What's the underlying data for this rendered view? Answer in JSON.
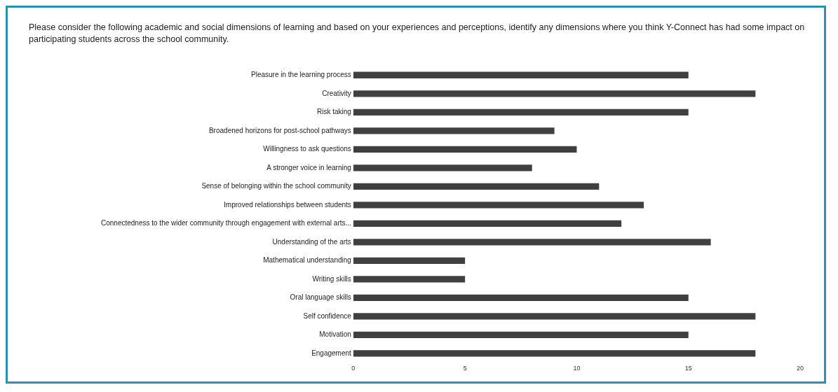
{
  "chart_data": {
    "type": "bar",
    "orientation": "horizontal",
    "title": "Please consider the following academic and social dimensions of learning and based on your experiences and perceptions, identify any dimensions where you think Y-Connect has had some impact on participating students across the school community.",
    "categories": [
      "Pleasure in the learning process",
      "Creativity",
      "Risk taking",
      "Broadened horizons for post-school pathways",
      "Willingness to ask questions",
      "A stronger voice in learning",
      "Sense of belonging within the school community",
      "Improved relationships between students",
      "Connectedness to the wider community through engagement with external arts...",
      "Understanding of the arts",
      "Mathematical understanding",
      "Writing skills",
      "Oral language skills",
      "Self confidence",
      "Motivation",
      "Engagement"
    ],
    "values": [
      15,
      18,
      15,
      9,
      10,
      8,
      11,
      13,
      12,
      16,
      5,
      5,
      15,
      18,
      15,
      18
    ],
    "color": "#404040",
    "xlim": [
      0,
      20
    ],
    "xticks": [
      0,
      5,
      10,
      15,
      20
    ],
    "grid": false,
    "legend": false
  }
}
